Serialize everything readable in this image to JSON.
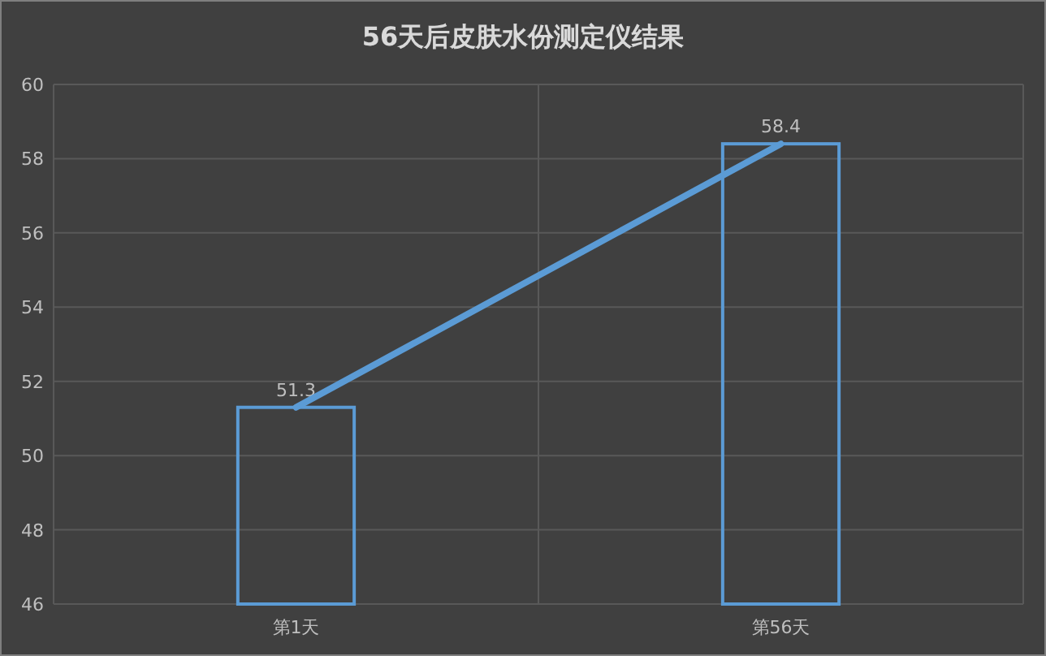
{
  "chart_data": {
    "type": "bar",
    "title": "56天后皮肤水份测定仪结果",
    "categories": [
      "第1天",
      "第56天"
    ],
    "series": [
      {
        "color": "#5b9bd5",
        "values": [
          51.3,
          58.4
        ],
        "value_labels": [
          "51.3",
          "58.4"
        ]
      },
      {
        "type": "line",
        "color": "#5b9bd5",
        "values": [
          51.3,
          58.4
        ]
      }
    ],
    "ylim": [
      46,
      60
    ],
    "yticks": [
      46,
      48,
      50,
      52,
      54,
      56,
      58,
      60
    ],
    "grid": true,
    "marker": "none",
    "line_style": "solid"
  }
}
